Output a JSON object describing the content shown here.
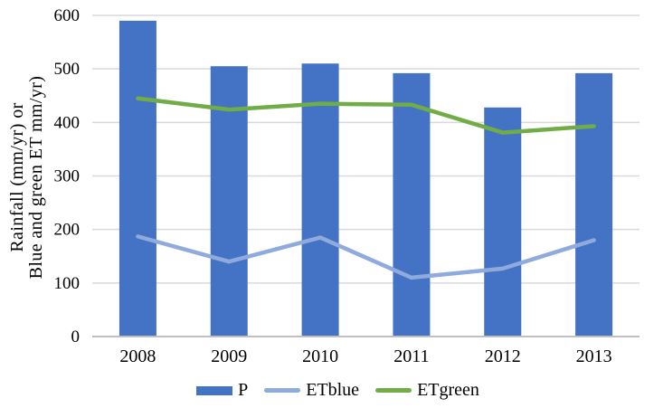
{
  "chart_data": {
    "type": "combo",
    "title": "",
    "xlabel": "",
    "ylabel_line1": "Rainfall (mm/yr) or",
    "ylabel_line2": "Blue and green ET mm/yr)",
    "categories": [
      "2008",
      "2009",
      "2010",
      "2011",
      "2012",
      "2013"
    ],
    "series": [
      {
        "name": "P",
        "type": "bar",
        "color": "#4472C4",
        "values": [
          590,
          505,
          510,
          492,
          428,
          492
        ]
      },
      {
        "name": "ETblue",
        "type": "line",
        "color": "#8FAADC",
        "values": [
          187,
          140,
          185,
          110,
          127,
          180
        ]
      },
      {
        "name": "ETgreen",
        "type": "line",
        "color": "#70AD47",
        "values": [
          445,
          424,
          435,
          433,
          381,
          393
        ]
      }
    ],
    "ylim": [
      0,
      600
    ],
    "yticks": [
      0,
      100,
      200,
      300,
      400,
      500,
      600
    ],
    "grid": "horizontal",
    "legend_position": "bottom"
  },
  "style": {
    "background": "#FFFFFF",
    "gridline_color": "#D9D9D9",
    "axis_line_color": "#BFBFBF",
    "text_color": "#000000"
  }
}
